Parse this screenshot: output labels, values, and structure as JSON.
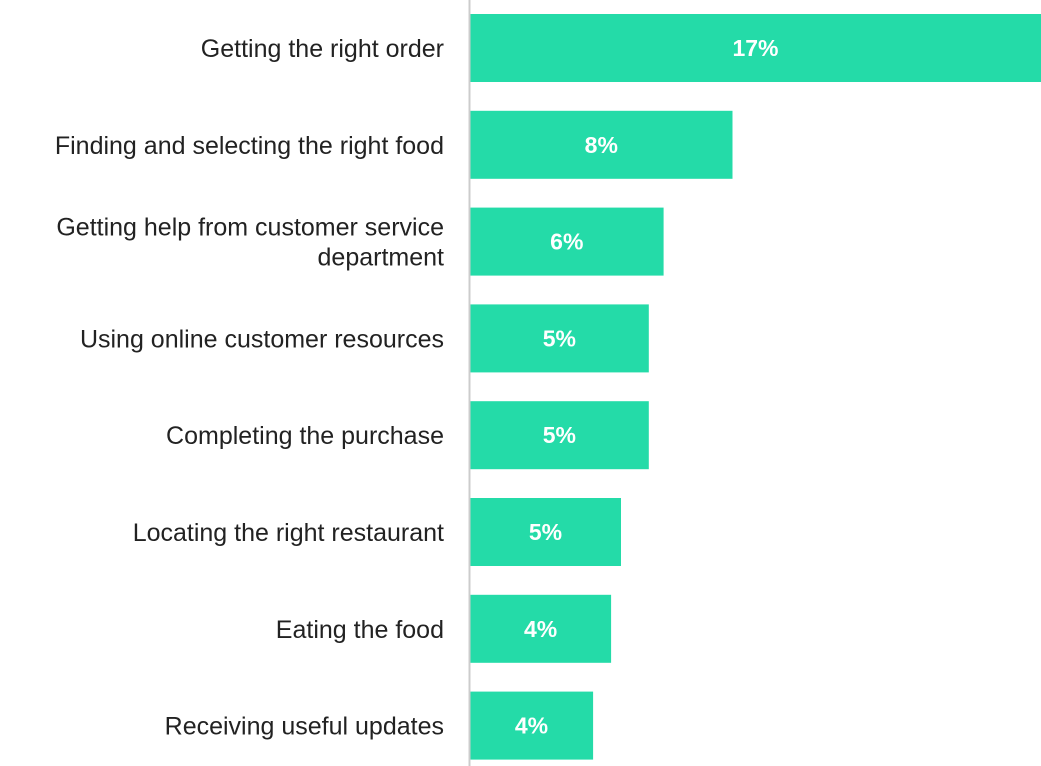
{
  "chart_data": {
    "type": "bar",
    "orientation": "horizontal",
    "categories": [
      [
        "Getting the right order"
      ],
      [
        "Finding and selecting the right food"
      ],
      [
        "Getting help from customer service",
        "department"
      ],
      [
        "Using online customer resources"
      ],
      [
        "Completing the purchase"
      ],
      [
        "Locating the right restaurant"
      ],
      [
        "Eating the food"
      ],
      [
        "Receiving useful updates"
      ]
    ],
    "values": [
      17.4,
      8.0,
      5.9,
      5.45,
      5.45,
      4.6,
      4.3,
      3.75
    ],
    "value_labels": [
      "17%",
      "8%",
      "6%",
      "5%",
      "5%",
      "5%",
      "4%",
      "4%"
    ],
    "bar_color": "#24dba8",
    "axis_line_color": "#cccccc",
    "title": "",
    "xlabel": "",
    "ylabel": "",
    "grid": false,
    "legend": "none"
  }
}
